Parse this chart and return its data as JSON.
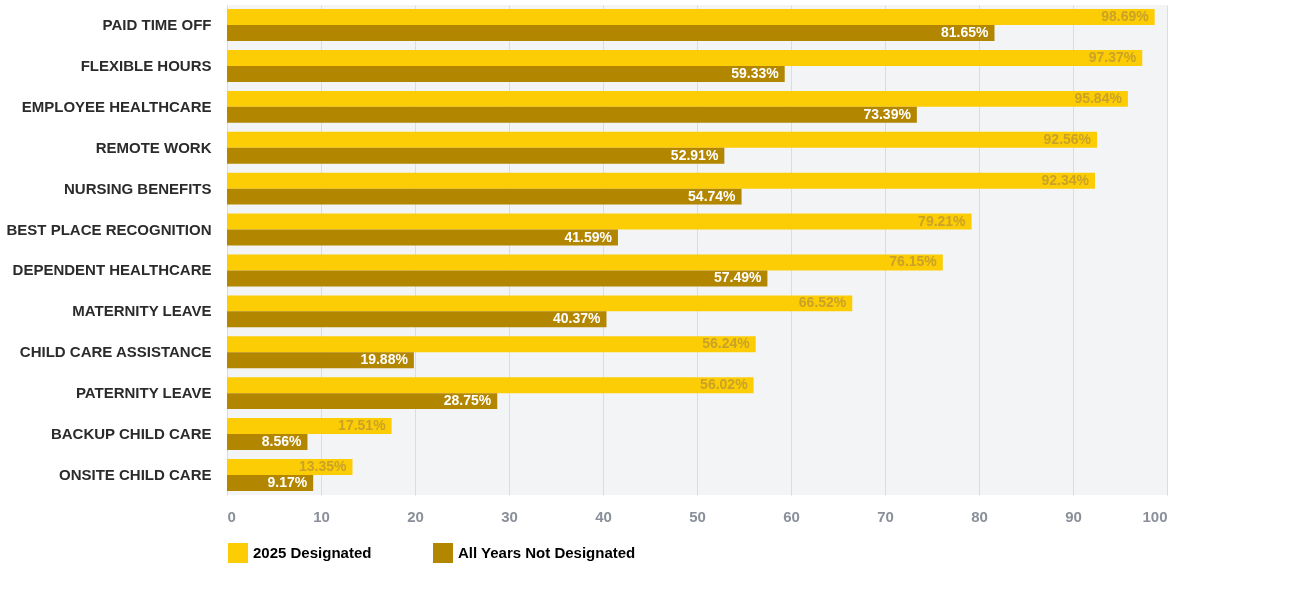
{
  "chart_data": {
    "type": "bar",
    "orientation": "horizontal",
    "categories": [
      "PAID TIME OFF",
      "FLEXIBLE HOURS",
      "EMPLOYEE HEALTHCARE",
      "REMOTE WORK",
      "NURSING BENEFITS",
      "BEST PLACE RECOGNITION",
      "DEPENDENT HEALTHCARE",
      "MATERNITY LEAVE",
      "CHILD CARE ASSISTANCE",
      "PATERNITY LEAVE",
      "BACKUP CHILD CARE",
      "ONSITE CHILD CARE"
    ],
    "series": [
      {
        "name": "2025 Designated",
        "color": "#fccd04",
        "values": [
          98.69,
          97.37,
          95.84,
          92.56,
          92.34,
          79.21,
          76.15,
          66.52,
          56.24,
          56.02,
          17.51,
          13.35
        ],
        "value_labels": [
          "98.69%",
          "97.37%",
          "95.84%",
          "92.56%",
          "92.34%",
          "79.21%",
          "76.15%",
          "66.52%",
          "56.24%",
          "56.02%",
          "17.51%",
          "13.35%"
        ]
      },
      {
        "name": "All Years Not Designated",
        "color": "#b38600",
        "values": [
          81.65,
          59.33,
          73.39,
          52.91,
          54.74,
          41.59,
          57.49,
          40.37,
          19.88,
          28.75,
          8.56,
          9.17
        ],
        "value_labels": [
          "81.65%",
          "59.33%",
          "73.39%",
          "52.91%",
          "54.74%",
          "41.59%",
          "57.49%",
          "40.37%",
          "19.88%",
          "28.75%",
          "8.56%",
          "9.17%"
        ]
      }
    ],
    "xlim": [
      0,
      100
    ],
    "xticks": [
      0,
      10,
      20,
      30,
      40,
      50,
      60,
      70,
      80,
      90,
      100
    ],
    "grid": "x",
    "legend": "bottom"
  }
}
